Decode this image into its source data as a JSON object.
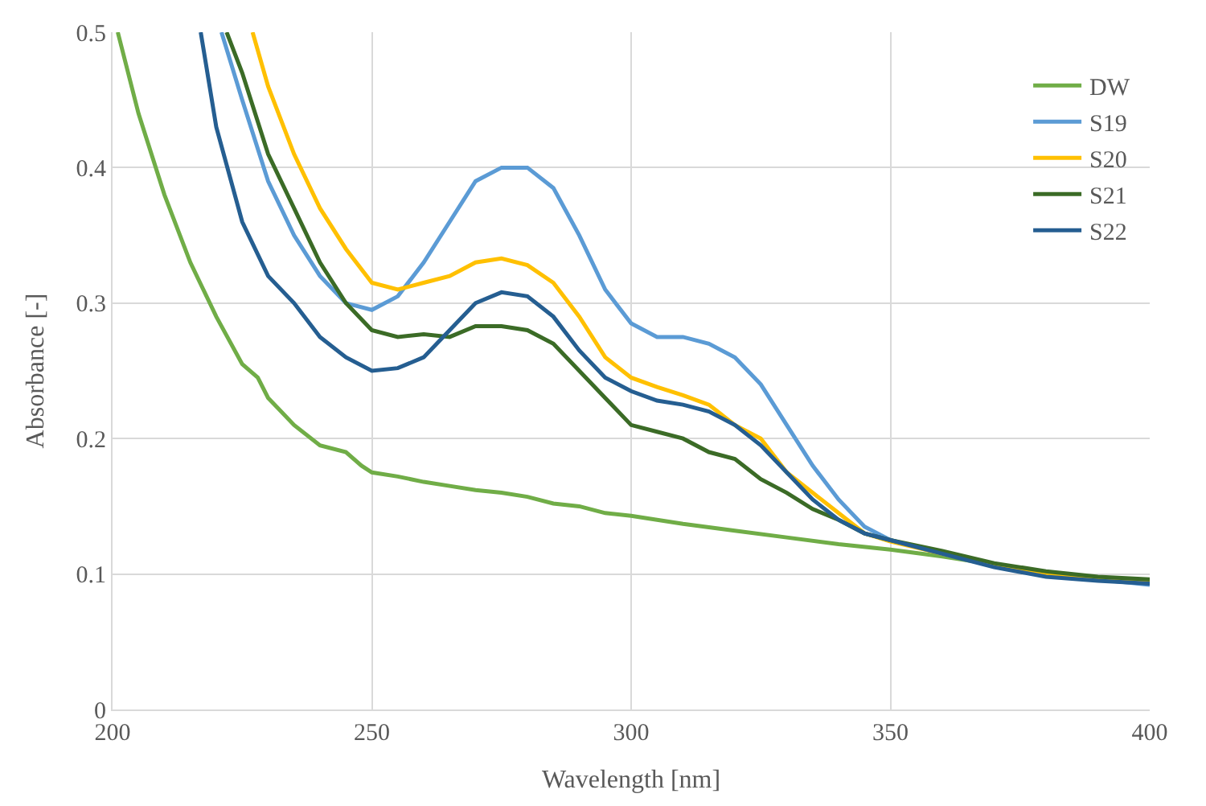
{
  "chart_data": {
    "type": "line",
    "xlabel": "Wavelength [nm]",
    "ylabel": "Absorbance [-]",
    "xlim": [
      200,
      400
    ],
    "xticks": [
      200,
      250,
      300,
      350,
      400
    ],
    "ylim": [
      0,
      0.5
    ],
    "yticks": [
      0,
      0.1,
      0.2,
      0.3,
      0.4,
      0.5
    ],
    "grid": true,
    "legend": "top right",
    "marker": "none",
    "line_style": "solid",
    "series": [
      {
        "name": "DW",
        "color": "#70ad47",
        "x": [
          201,
          205,
          210,
          215,
          220,
          225,
          228,
          230,
          235,
          240,
          245,
          248,
          250,
          255,
          260,
          265,
          270,
          275,
          280,
          285,
          290,
          295,
          300,
          310,
          320,
          330,
          340,
          350,
          360,
          370,
          380,
          390,
          400
        ],
        "values": [
          0.5,
          0.44,
          0.38,
          0.33,
          0.29,
          0.255,
          0.245,
          0.23,
          0.21,
          0.195,
          0.19,
          0.18,
          0.175,
          0.172,
          0.168,
          0.165,
          0.162,
          0.16,
          0.157,
          0.152,
          0.15,
          0.145,
          0.143,
          0.137,
          0.132,
          0.127,
          0.122,
          0.118,
          0.113,
          0.107,
          0.101,
          0.097,
          0.095
        ]
      },
      {
        "name": "S19",
        "color": "#5b9bd5",
        "x": [
          221,
          225,
          230,
          235,
          240,
          245,
          250,
          255,
          260,
          265,
          270,
          275,
          280,
          285,
          290,
          295,
          300,
          305,
          310,
          315,
          320,
          325,
          330,
          335,
          340,
          345,
          350,
          360,
          370,
          380,
          390,
          400
        ],
        "values": [
          0.5,
          0.45,
          0.39,
          0.35,
          0.32,
          0.3,
          0.295,
          0.305,
          0.33,
          0.36,
          0.39,
          0.4,
          0.4,
          0.385,
          0.35,
          0.31,
          0.285,
          0.275,
          0.275,
          0.27,
          0.26,
          0.24,
          0.21,
          0.18,
          0.155,
          0.135,
          0.125,
          0.115,
          0.107,
          0.1,
          0.096,
          0.092
        ]
      },
      {
        "name": "S20",
        "color": "#ffc000",
        "x": [
          227,
          230,
          235,
          240,
          245,
          250,
          255,
          260,
          265,
          270,
          275,
          280,
          285,
          290,
          295,
          300,
          305,
          310,
          315,
          320,
          325,
          330,
          335,
          340,
          345,
          350,
          360,
          370,
          380,
          400
        ],
        "values": [
          0.5,
          0.46,
          0.41,
          0.37,
          0.34,
          0.315,
          0.31,
          0.315,
          0.32,
          0.33,
          0.333,
          0.328,
          0.315,
          0.29,
          0.26,
          0.245,
          0.238,
          0.232,
          0.225,
          0.21,
          0.2,
          0.175,
          0.16,
          0.145,
          0.13,
          0.124,
          0.115,
          0.107,
          0.1,
          0.094
        ]
      },
      {
        "name": "S21",
        "color": "#3b6b26",
        "x": [
          222,
          225,
          230,
          235,
          240,
          245,
          250,
          255,
          260,
          265,
          270,
          275,
          280,
          285,
          290,
          295,
          300,
          305,
          310,
          315,
          320,
          325,
          330,
          335,
          340,
          345,
          350,
          360,
          370,
          380,
          390,
          400
        ],
        "values": [
          0.5,
          0.47,
          0.41,
          0.37,
          0.33,
          0.3,
          0.28,
          0.275,
          0.277,
          0.275,
          0.283,
          0.283,
          0.28,
          0.27,
          0.25,
          0.23,
          0.21,
          0.205,
          0.2,
          0.19,
          0.185,
          0.17,
          0.16,
          0.148,
          0.14,
          0.13,
          0.125,
          0.117,
          0.108,
          0.102,
          0.098,
          0.096
        ]
      },
      {
        "name": "S22",
        "color": "#255e91",
        "x": [
          217,
          220,
          225,
          230,
          235,
          240,
          245,
          250,
          255,
          260,
          265,
          270,
          275,
          280,
          285,
          290,
          295,
          300,
          305,
          310,
          315,
          320,
          325,
          330,
          335,
          340,
          345,
          350,
          360,
          370,
          380,
          390,
          400
        ],
        "values": [
          0.5,
          0.43,
          0.36,
          0.32,
          0.3,
          0.275,
          0.26,
          0.25,
          0.252,
          0.26,
          0.28,
          0.3,
          0.308,
          0.305,
          0.29,
          0.265,
          0.245,
          0.235,
          0.228,
          0.225,
          0.22,
          0.21,
          0.195,
          0.175,
          0.155,
          0.14,
          0.13,
          0.125,
          0.115,
          0.105,
          0.098,
          0.095,
          0.093
        ]
      }
    ]
  }
}
